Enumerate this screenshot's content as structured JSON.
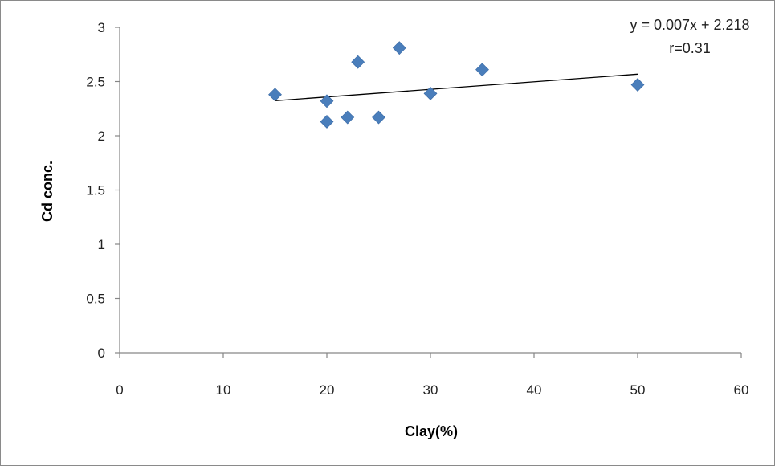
{
  "chart_data": {
    "type": "scatter",
    "xlabel": "Clay(%)",
    "ylabel": "Cd conc.",
    "xlim": [
      0,
      60
    ],
    "ylim": [
      0,
      3
    ],
    "x_ticks": [
      "0",
      "10",
      "20",
      "30",
      "40",
      "50",
      "60"
    ],
    "y_ticks": [
      "0",
      "0.5",
      "1",
      "1.5",
      "2",
      "2.5",
      "3"
    ],
    "points": [
      {
        "x": 15,
        "y": 2.38
      },
      {
        "x": 20,
        "y": 2.32
      },
      {
        "x": 20,
        "y": 2.13
      },
      {
        "x": 22,
        "y": 2.17
      },
      {
        "x": 23,
        "y": 2.68
      },
      {
        "x": 25,
        "y": 2.17
      },
      {
        "x": 27,
        "y": 2.81
      },
      {
        "x": 30,
        "y": 2.39
      },
      {
        "x": 35,
        "y": 2.61
      },
      {
        "x": 50,
        "y": 2.47
      }
    ],
    "trendline": {
      "equation": "y = 0.007x + 2.218",
      "r_label": "r=0.31",
      "slope": 0.007,
      "intercept": 2.218,
      "x_range": [
        15,
        50
      ]
    },
    "grid": false,
    "legend": "none",
    "colors": {
      "marker": "#4a7ebb",
      "trendline": "#000000",
      "axis": "#868686"
    }
  }
}
